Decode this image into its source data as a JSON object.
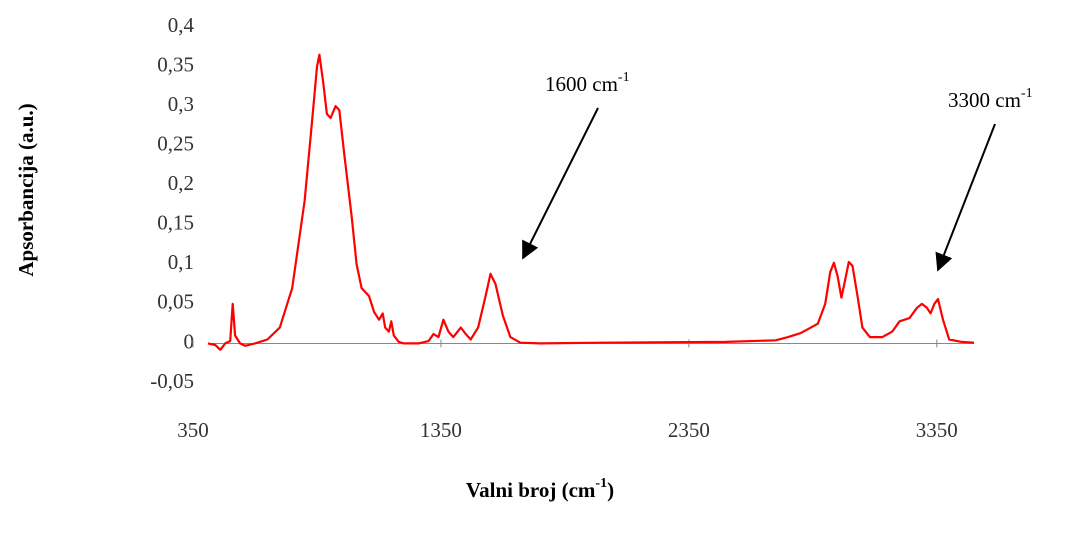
{
  "chart_data": {
    "type": "line",
    "x_label": {
      "text": "Valni broj (cm",
      "sup": "-1",
      "tail": ")"
    },
    "y_label": "Apsorbancija (a.u.)",
    "annotations": [
      {
        "text": "1600 cm",
        "sup": "-1"
      },
      {
        "text": "3300 cm",
        "sup": "-1"
      }
    ],
    "color": "#ff0000",
    "x": [
      410,
      440,
      460,
      480,
      500,
      510,
      520,
      540,
      560,
      600,
      650,
      700,
      750,
      800,
      830,
      850,
      860,
      875,
      890,
      905,
      925,
      940,
      960,
      990,
      1010,
      1030,
      1060,
      1080,
      1100,
      1115,
      1125,
      1140,
      1150,
      1160,
      1180,
      1200,
      1260,
      1300,
      1320,
      1340,
      1360,
      1380,
      1400,
      1430,
      1450,
      1470,
      1500,
      1530,
      1550,
      1570,
      1600,
      1630,
      1670,
      1750,
      2000,
      2500,
      2700,
      2750,
      2800,
      2830,
      2870,
      2900,
      2920,
      2935,
      2950,
      2965,
      2980,
      2995,
      3010,
      3030,
      3050,
      3080,
      3130,
      3170,
      3200,
      3240,
      3270,
      3290,
      3310,
      3325,
      3340,
      3355,
      3375,
      3400,
      3450,
      3500
    ],
    "values": [
      0,
      -0.002,
      -0.008,
      0,
      0.003,
      0.05,
      0.01,
      0,
      -0.003,
      0,
      0.005,
      0.02,
      0.07,
      0.18,
      0.28,
      0.35,
      0.365,
      0.33,
      0.29,
      0.285,
      0.3,
      0.295,
      0.24,
      0.16,
      0.1,
      0.07,
      0.06,
      0.04,
      0.03,
      0.038,
      0.02,
      0.015,
      0.028,
      0.01,
      0.002,
      0,
      0,
      0.003,
      0.012,
      0.008,
      0.03,
      0.015,
      0.008,
      0.02,
      0.012,
      0.005,
      0.02,
      0.06,
      0.088,
      0.075,
      0.035,
      0.008,
      0.001,
      0,
      0.001,
      0.002,
      0.004,
      0.008,
      0.013,
      0.018,
      0.025,
      0.05,
      0.09,
      0.102,
      0.085,
      0.058,
      0.08,
      0.103,
      0.098,
      0.06,
      0.02,
      0.008,
      0.008,
      0.015,
      0.028,
      0.032,
      0.045,
      0.05,
      0.045,
      0.038,
      0.05,
      0.056,
      0.03,
      0.005,
      0.002,
      0.001
    ],
    "xlim": [
      350,
      3500
    ],
    "xticks": [
      350,
      1350,
      2350,
      3350
    ],
    "ylim": [
      -0.05,
      0.4
    ],
    "yticks": [
      {
        "value": -0.05,
        "label": "-0,05"
      },
      0,
      {
        "value": 0.05,
        "label": "0,05"
      },
      {
        "value": 0.1,
        "label": "0,1"
      },
      {
        "value": 0.15,
        "label": "0,15"
      },
      {
        "value": 0.2,
        "label": "0,2"
      },
      {
        "value": 0.25,
        "label": "0,25"
      },
      {
        "value": 0.3,
        "label": "0,3"
      },
      {
        "value": 0.35,
        "label": "0,35"
      },
      {
        "value": 0.4,
        "label": "0,4"
      }
    ]
  }
}
